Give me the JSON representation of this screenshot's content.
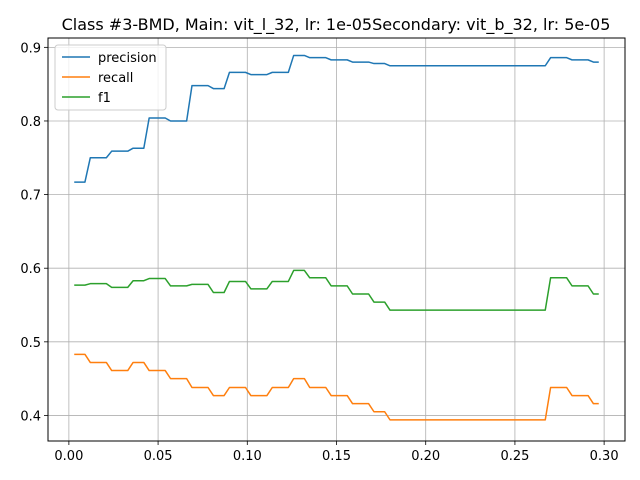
{
  "chart_data": {
    "type": "line",
    "title": "Class #3-BMD, Main: vit_l_32, lr: 1e-05Secondary: vit_b_32, lr: 5e-05",
    "xlabel": "",
    "ylabel": "",
    "xlim": [
      -0.0117,
      0.3117
    ],
    "ylim": [
      0.3653,
      0.9127
    ],
    "xticks": [
      0.0,
      0.05,
      0.1,
      0.15,
      0.2,
      0.25,
      0.3
    ],
    "xtick_labels": [
      "0.00",
      "0.05",
      "0.10",
      "0.15",
      "0.20",
      "0.25",
      "0.30"
    ],
    "yticks": [
      0.4,
      0.5,
      0.6,
      0.7,
      0.8,
      0.9
    ],
    "ytick_labels": [
      "0.4",
      "0.5",
      "0.6",
      "0.7",
      "0.8",
      "0.9"
    ],
    "grid": true,
    "legend_position": "top-left",
    "series": [
      {
        "name": "precision",
        "color": "#1f77b4",
        "points": [
          [
            0.003,
            0.717
          ],
          [
            0.009,
            0.717
          ],
          [
            0.012,
            0.75
          ],
          [
            0.021,
            0.75
          ],
          [
            0.024,
            0.759
          ],
          [
            0.033,
            0.759
          ],
          [
            0.036,
            0.763
          ],
          [
            0.042,
            0.763
          ],
          [
            0.045,
            0.804
          ],
          [
            0.054,
            0.804
          ],
          [
            0.057,
            0.8
          ],
          [
            0.066,
            0.8
          ],
          [
            0.069,
            0.848
          ],
          [
            0.078,
            0.848
          ],
          [
            0.081,
            0.844
          ],
          [
            0.087,
            0.844
          ],
          [
            0.09,
            0.866
          ],
          [
            0.099,
            0.866
          ],
          [
            0.102,
            0.863
          ],
          [
            0.111,
            0.863
          ],
          [
            0.114,
            0.866
          ],
          [
            0.123,
            0.866
          ],
          [
            0.126,
            0.889
          ],
          [
            0.132,
            0.889
          ],
          [
            0.135,
            0.886
          ],
          [
            0.144,
            0.886
          ],
          [
            0.147,
            0.883
          ],
          [
            0.156,
            0.883
          ],
          [
            0.159,
            0.88
          ],
          [
            0.168,
            0.88
          ],
          [
            0.171,
            0.878
          ],
          [
            0.177,
            0.878
          ],
          [
            0.18,
            0.875
          ],
          [
            0.267,
            0.875
          ],
          [
            0.27,
            0.886
          ],
          [
            0.279,
            0.886
          ],
          [
            0.282,
            0.883
          ],
          [
            0.291,
            0.883
          ],
          [
            0.294,
            0.88
          ],
          [
            0.297,
            0.88
          ]
        ]
      },
      {
        "name": "recall",
        "color": "#ff7f0e",
        "points": [
          [
            0.003,
            0.483
          ],
          [
            0.009,
            0.483
          ],
          [
            0.012,
            0.472
          ],
          [
            0.021,
            0.472
          ],
          [
            0.024,
            0.461
          ],
          [
            0.033,
            0.461
          ],
          [
            0.036,
            0.472
          ],
          [
            0.042,
            0.472
          ],
          [
            0.045,
            0.461
          ],
          [
            0.054,
            0.461
          ],
          [
            0.057,
            0.45
          ],
          [
            0.066,
            0.45
          ],
          [
            0.069,
            0.438
          ],
          [
            0.078,
            0.438
          ],
          [
            0.081,
            0.427
          ],
          [
            0.087,
            0.427
          ],
          [
            0.09,
            0.438
          ],
          [
            0.099,
            0.438
          ],
          [
            0.102,
            0.427
          ],
          [
            0.111,
            0.427
          ],
          [
            0.114,
            0.438
          ],
          [
            0.123,
            0.438
          ],
          [
            0.126,
            0.45
          ],
          [
            0.132,
            0.45
          ],
          [
            0.135,
            0.438
          ],
          [
            0.144,
            0.438
          ],
          [
            0.147,
            0.427
          ],
          [
            0.156,
            0.427
          ],
          [
            0.159,
            0.416
          ],
          [
            0.168,
            0.416
          ],
          [
            0.171,
            0.405
          ],
          [
            0.177,
            0.405
          ],
          [
            0.18,
            0.394
          ],
          [
            0.267,
            0.394
          ],
          [
            0.27,
            0.438
          ],
          [
            0.279,
            0.438
          ],
          [
            0.282,
            0.427
          ],
          [
            0.291,
            0.427
          ],
          [
            0.294,
            0.416
          ],
          [
            0.297,
            0.416
          ]
        ]
      },
      {
        "name": "f1",
        "color": "#2ca02c",
        "points": [
          [
            0.003,
            0.577
          ],
          [
            0.009,
            0.577
          ],
          [
            0.012,
            0.579
          ],
          [
            0.021,
            0.579
          ],
          [
            0.024,
            0.574
          ],
          [
            0.033,
            0.574
          ],
          [
            0.036,
            0.583
          ],
          [
            0.042,
            0.583
          ],
          [
            0.045,
            0.586
          ],
          [
            0.054,
            0.586
          ],
          [
            0.057,
            0.576
          ],
          [
            0.066,
            0.576
          ],
          [
            0.069,
            0.578
          ],
          [
            0.078,
            0.578
          ],
          [
            0.081,
            0.567
          ],
          [
            0.087,
            0.567
          ],
          [
            0.09,
            0.582
          ],
          [
            0.099,
            0.582
          ],
          [
            0.102,
            0.572
          ],
          [
            0.111,
            0.572
          ],
          [
            0.114,
            0.582
          ],
          [
            0.123,
            0.582
          ],
          [
            0.126,
            0.597
          ],
          [
            0.132,
            0.597
          ],
          [
            0.135,
            0.587
          ],
          [
            0.144,
            0.587
          ],
          [
            0.147,
            0.576
          ],
          [
            0.156,
            0.576
          ],
          [
            0.159,
            0.565
          ],
          [
            0.168,
            0.565
          ],
          [
            0.171,
            0.554
          ],
          [
            0.177,
            0.554
          ],
          [
            0.18,
            0.543
          ],
          [
            0.267,
            0.543
          ],
          [
            0.27,
            0.587
          ],
          [
            0.279,
            0.587
          ],
          [
            0.282,
            0.576
          ],
          [
            0.291,
            0.576
          ],
          [
            0.294,
            0.565
          ],
          [
            0.297,
            0.565
          ]
        ]
      }
    ]
  }
}
